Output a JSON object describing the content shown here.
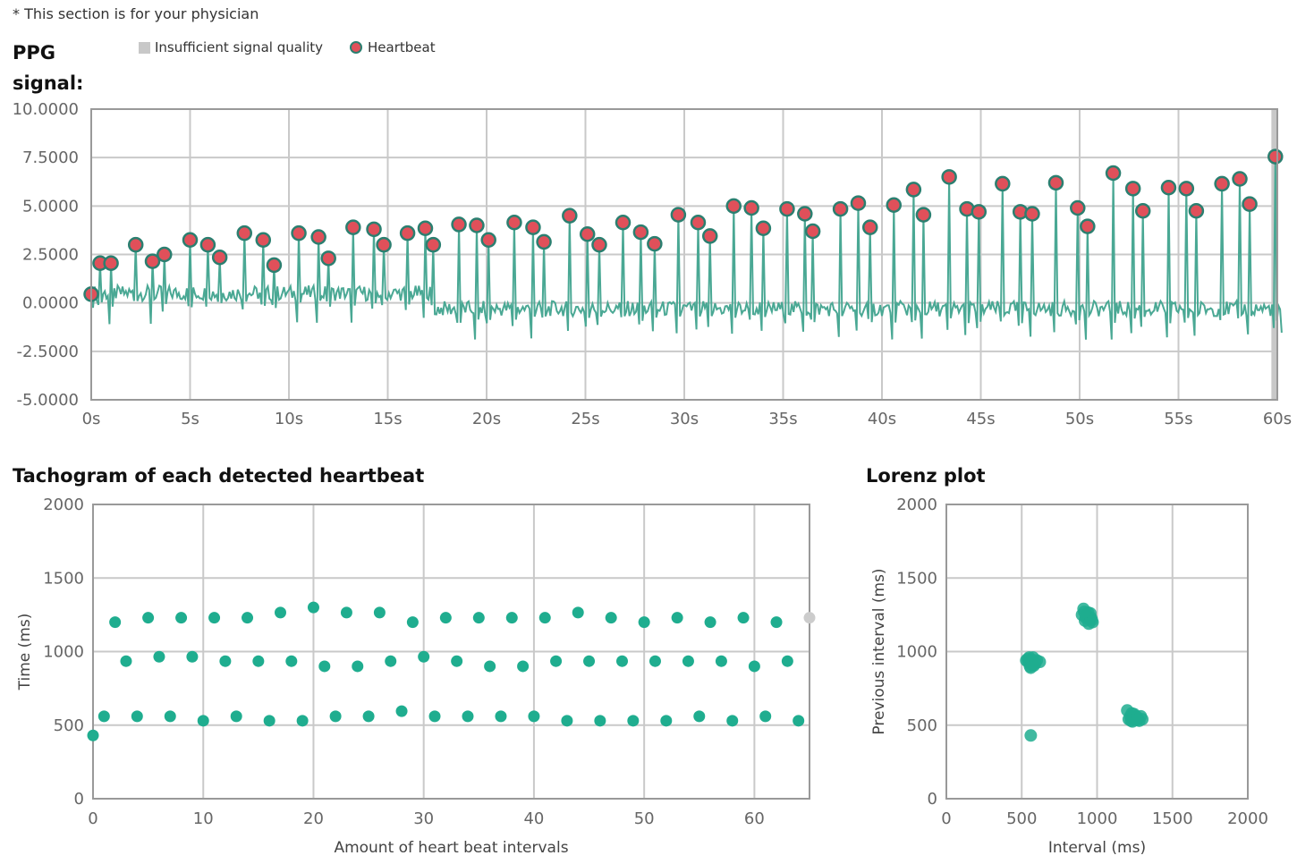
{
  "note": "* This section is for your physician",
  "ppg": {
    "title": "PPG signal:",
    "legend": {
      "insufficient": "Insufficient signal quality",
      "heartbeat": "Heartbeat"
    },
    "colors": {
      "line": "#4aa894",
      "beat_fill": "#e0505a",
      "beat_stroke": "#2b7f70",
      "insufficient": "#c8c8c8"
    }
  },
  "tachogram": {
    "title": "Tachogram of each detected heartbeat",
    "xlabel": "Amount of heart beat intervals",
    "ylabel": "Time (ms)"
  },
  "lorenz": {
    "title": "Lorenz plot",
    "xlabel": "Interval (ms)",
    "ylabel": "Previous interval (ms)"
  },
  "chart_data": [
    {
      "type": "line",
      "name": "ppg",
      "xlim": [
        0,
        60
      ],
      "ylim": [
        -5,
        10
      ],
      "xticks": [
        "0s",
        "5s",
        "10s",
        "15s",
        "20s",
        "25s",
        "30s",
        "35s",
        "40s",
        "45s",
        "50s",
        "55s",
        "60s"
      ],
      "yticks": [
        "10.0000",
        "7.5000",
        "5.0000",
        "2.5000",
        "0.0000",
        "-2.5000",
        "-5.0000"
      ],
      "insufficient_signal": [
        59.7,
        60.2
      ],
      "heartbeats": [
        [
          0.0,
          0.45
        ],
        [
          0.45,
          2.05
        ],
        [
          1.0,
          2.05
        ],
        [
          2.25,
          3.0
        ],
        [
          3.1,
          2.15
        ],
        [
          3.7,
          2.5
        ],
        [
          5.0,
          3.25
        ],
        [
          5.9,
          3.0
        ],
        [
          6.5,
          2.35
        ],
        [
          7.75,
          3.6
        ],
        [
          8.7,
          3.25
        ],
        [
          9.25,
          1.95
        ],
        [
          10.5,
          3.6
        ],
        [
          11.5,
          3.4
        ],
        [
          12.0,
          2.3
        ],
        [
          13.25,
          3.9
        ],
        [
          14.3,
          3.8
        ],
        [
          14.8,
          3.0
        ],
        [
          16.0,
          3.6
        ],
        [
          16.9,
          3.85
        ],
        [
          17.3,
          3.0
        ],
        [
          18.6,
          4.05
        ],
        [
          19.5,
          4.0
        ],
        [
          20.1,
          3.25
        ],
        [
          21.4,
          4.15
        ],
        [
          22.35,
          3.9
        ],
        [
          22.9,
          3.15
        ],
        [
          24.2,
          4.5
        ],
        [
          25.1,
          3.55
        ],
        [
          25.7,
          3.0
        ],
        [
          26.9,
          4.15
        ],
        [
          27.8,
          3.65
        ],
        [
          28.5,
          3.05
        ],
        [
          29.7,
          4.55
        ],
        [
          30.7,
          4.15
        ],
        [
          31.3,
          3.45
        ],
        [
          32.5,
          5.0
        ],
        [
          33.4,
          4.9
        ],
        [
          34.0,
          3.85
        ],
        [
          35.2,
          4.85
        ],
        [
          36.1,
          4.6
        ],
        [
          36.5,
          3.7
        ],
        [
          37.9,
          4.85
        ],
        [
          38.8,
          5.15
        ],
        [
          39.4,
          3.9
        ],
        [
          40.6,
          5.05
        ],
        [
          41.6,
          5.85
        ],
        [
          42.1,
          4.55
        ],
        [
          43.4,
          6.5
        ],
        [
          44.3,
          4.85
        ],
        [
          44.9,
          4.7
        ],
        [
          46.1,
          6.15
        ],
        [
          47.0,
          4.7
        ],
        [
          47.6,
          4.6
        ],
        [
          48.8,
          6.2
        ],
        [
          49.9,
          4.9
        ],
        [
          50.4,
          3.95
        ],
        [
          51.7,
          6.7
        ],
        [
          52.7,
          5.9
        ],
        [
          53.2,
          4.75
        ],
        [
          54.5,
          5.95
        ],
        [
          55.4,
          5.9
        ],
        [
          55.9,
          4.75
        ],
        [
          57.2,
          6.15
        ],
        [
          58.1,
          6.4
        ],
        [
          58.6,
          5.1
        ],
        [
          59.9,
          7.55
        ]
      ]
    },
    {
      "type": "scatter",
      "name": "tachogram",
      "xlim": [
        0,
        65
      ],
      "ylim": [
        0,
        2000
      ],
      "xticks": [
        0,
        10,
        20,
        30,
        40,
        50,
        60
      ],
      "yticks": [
        0,
        500,
        1000,
        1500,
        2000
      ],
      "points": [
        [
          0,
          430
        ],
        [
          1,
          560
        ],
        [
          2,
          1200
        ],
        [
          3,
          935
        ],
        [
          4,
          560
        ],
        [
          5,
          1230
        ],
        [
          6,
          965
        ],
        [
          7,
          560
        ],
        [
          8,
          1230
        ],
        [
          9,
          965
        ],
        [
          10,
          530
        ],
        [
          11,
          1230
        ],
        [
          12,
          935
        ],
        [
          13,
          560
        ],
        [
          14,
          1230
        ],
        [
          15,
          935
        ],
        [
          16,
          530
        ],
        [
          17,
          1265
        ],
        [
          18,
          935
        ],
        [
          19,
          530
        ],
        [
          20,
          1300
        ],
        [
          21,
          900
        ],
        [
          22,
          560
        ],
        [
          23,
          1265
        ],
        [
          24,
          900
        ],
        [
          25,
          560
        ],
        [
          26,
          1265
        ],
        [
          27,
          935
        ],
        [
          28,
          595
        ],
        [
          29,
          1200
        ],
        [
          30,
          965
        ],
        [
          31,
          560
        ],
        [
          32,
          1230
        ],
        [
          33,
          935
        ],
        [
          34,
          560
        ],
        [
          35,
          1230
        ],
        [
          36,
          900
        ],
        [
          37,
          560
        ],
        [
          38,
          1230
        ],
        [
          39,
          900
        ],
        [
          40,
          560
        ],
        [
          41,
          1230
        ],
        [
          42,
          935
        ],
        [
          43,
          530
        ],
        [
          44,
          1265
        ],
        [
          45,
          935
        ],
        [
          46,
          530
        ],
        [
          47,
          1230
        ],
        [
          48,
          935
        ],
        [
          49,
          530
        ],
        [
          50,
          1200
        ],
        [
          51,
          935
        ],
        [
          52,
          530
        ],
        [
          53,
          1230
        ],
        [
          54,
          935
        ],
        [
          55,
          560
        ],
        [
          56,
          1200
        ],
        [
          57,
          935
        ],
        [
          58,
          530
        ],
        [
          59,
          1230
        ],
        [
          60,
          900
        ],
        [
          61,
          560
        ],
        [
          62,
          1200
        ],
        [
          63,
          935
        ],
        [
          64,
          530
        ]
      ],
      "grey_points": [
        [
          65,
          1230
        ]
      ]
    },
    {
      "type": "scatter",
      "name": "lorenz",
      "xlim": [
        0,
        2000
      ],
      "ylim": [
        0,
        2000
      ],
      "xticks": [
        0,
        500,
        1000,
        1500,
        2000
      ],
      "yticks": [
        0,
        500,
        1000,
        1500,
        2000
      ],
      "points": [
        [
          560,
          430
        ],
        [
          540,
          950
        ],
        [
          560,
          930
        ],
        [
          575,
          960
        ],
        [
          590,
          920
        ],
        [
          555,
          900
        ],
        [
          530,
          940
        ],
        [
          570,
          910
        ],
        [
          600,
          940
        ],
        [
          545,
          925
        ],
        [
          565,
          945
        ],
        [
          550,
          960
        ],
        [
          580,
          905
        ],
        [
          560,
          890
        ],
        [
          620,
          930
        ],
        [
          910,
          1290
        ],
        [
          930,
          1250
        ],
        [
          950,
          1220
        ],
        [
          960,
          1230
        ],
        [
          920,
          1210
        ],
        [
          940,
          1265
        ],
        [
          970,
          1200
        ],
        [
          935,
          1235
        ],
        [
          900,
          1250
        ],
        [
          955,
          1260
        ],
        [
          925,
          1230
        ],
        [
          965,
          1215
        ],
        [
          945,
          1190
        ],
        [
          915,
          1270
        ],
        [
          1200,
          600
        ],
        [
          1220,
          560
        ],
        [
          1240,
          540
        ],
        [
          1260,
          560
        ],
        [
          1230,
          580
        ],
        [
          1280,
          530
        ],
        [
          1250,
          555
        ],
        [
          1210,
          540
        ],
        [
          1270,
          545
        ],
        [
          1300,
          540
        ],
        [
          1235,
          525
        ],
        [
          1245,
          575
        ],
        [
          1225,
          530
        ],
        [
          1290,
          560
        ],
        [
          1265,
          535
        ]
      ]
    }
  ]
}
